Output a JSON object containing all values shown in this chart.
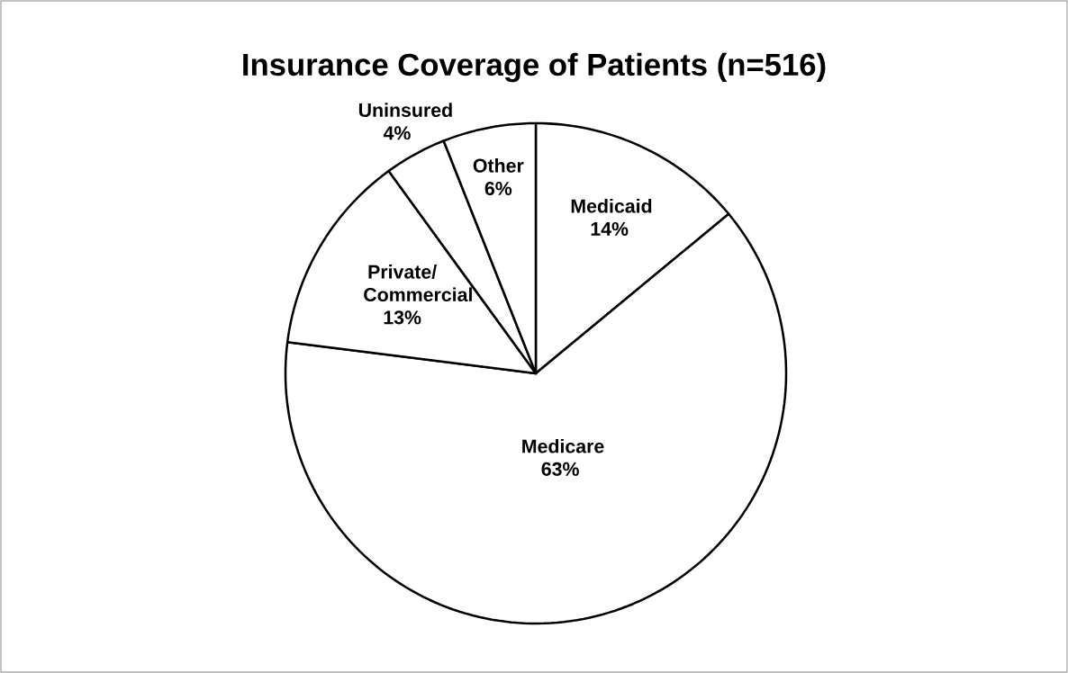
{
  "chart_data": {
    "type": "pie",
    "title": "Insurance Coverage of Patients (n=516)",
    "categories": [
      "Medicaid",
      "Medicare",
      "Private/ Commercial",
      "Uninsured",
      "Other"
    ],
    "values": [
      14,
      63,
      13,
      4,
      6
    ],
    "colors": [
      "#ffffff",
      "#ffffff",
      "#ffffff",
      "#ffffff",
      "#ffffff"
    ],
    "value_labels": [
      "14%",
      "63%",
      "13%",
      "4%",
      "6%"
    ]
  }
}
